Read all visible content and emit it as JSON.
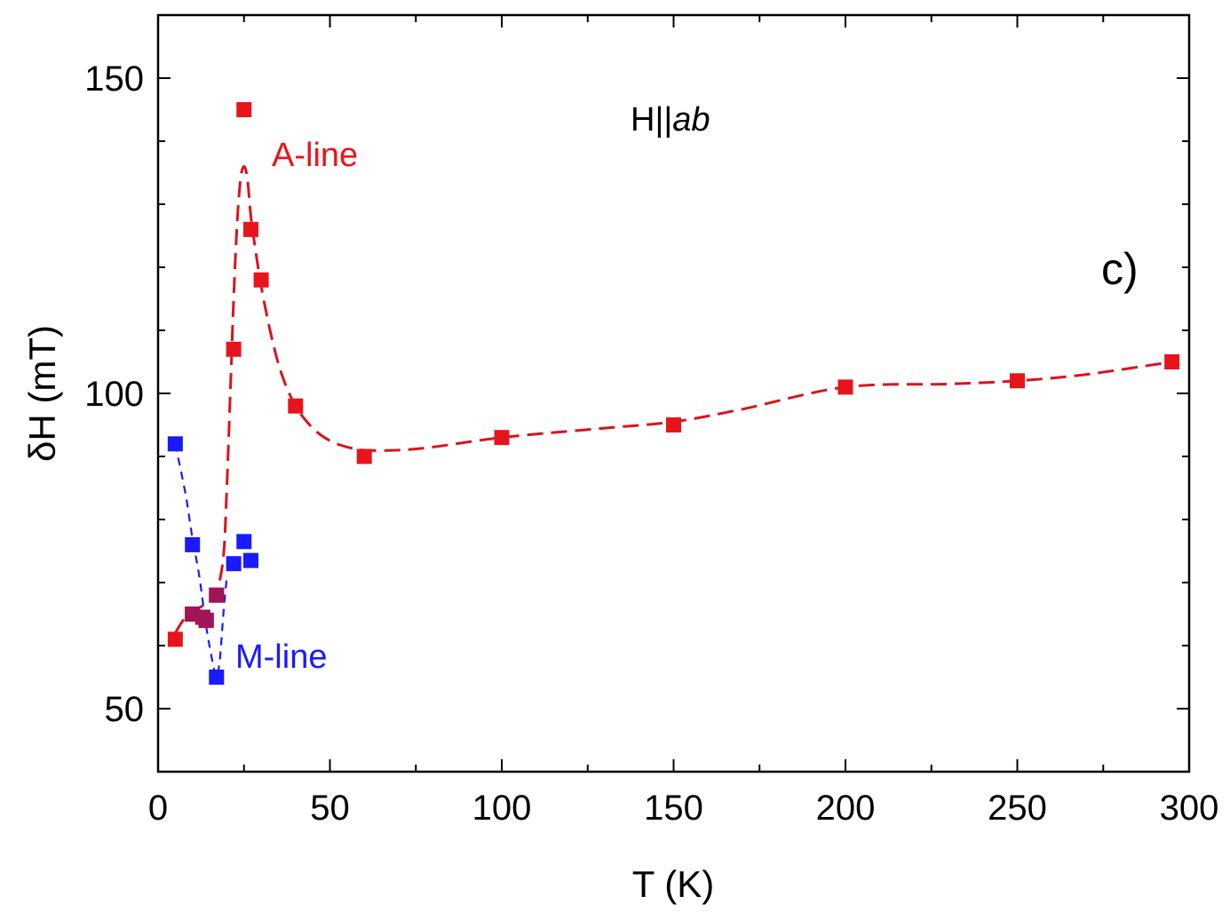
{
  "chart_data": {
    "type": "scatter",
    "title": "",
    "xlabel": "T (K)",
    "ylabel": "δH (mT)",
    "xlim": [
      0,
      300
    ],
    "ylim": [
      40,
      160
    ],
    "x_major_ticks": [
      0,
      50,
      100,
      150,
      200,
      250,
      300
    ],
    "y_major_ticks": [
      50,
      100,
      150
    ],
    "x_tick_labels": [
      "0",
      "50",
      "100",
      "150",
      "200",
      "250",
      "300"
    ],
    "y_tick_labels": [
      "50",
      "100",
      "150"
    ],
    "x_minor_ticks": [
      25,
      75,
      125,
      175,
      225,
      275
    ],
    "y_minor_ticks": [
      60,
      70,
      80,
      90,
      110,
      120,
      130,
      140
    ],
    "series": [
      {
        "name": "A-line",
        "color": "#e8141c",
        "x": [
          5,
          10,
          13,
          14,
          17,
          22,
          25,
          27,
          30,
          40,
          60,
          100,
          150,
          200,
          250,
          295
        ],
        "y": [
          61,
          65,
          64.5,
          64,
          68,
          107,
          145,
          126,
          118,
          98,
          90,
          93,
          95,
          101,
          102,
          105
        ]
      },
      {
        "name": "M-line",
        "color": "#1a1aff",
        "x": [
          5,
          10,
          14,
          17,
          22,
          25,
          27
        ],
        "y": [
          92,
          76,
          64,
          55,
          73,
          76.5,
          73.5
        ]
      }
    ],
    "overlap_points": {
      "color": "#a01458",
      "x": [
        10,
        13,
        14,
        17
      ],
      "y": [
        65,
        64.5,
        64,
        68
      ]
    },
    "fit_curves": [
      {
        "series": "A-line",
        "color": "#d9141c",
        "x": [
          5,
          8,
          12,
          15,
          17,
          19,
          20,
          21,
          22,
          23,
          24,
          25,
          26,
          27,
          28,
          30,
          33,
          36,
          40,
          45,
          50,
          55,
          60,
          70,
          80,
          100,
          130,
          150,
          170,
          200,
          230,
          250,
          270,
          295
        ],
        "y": [
          62,
          64.5,
          66,
          67,
          68.5,
          74,
          85,
          100,
          115,
          127,
          134,
          136,
          134,
          128,
          124,
          117,
          109,
          103,
          98,
          94.5,
          92.5,
          91.5,
          91,
          91,
          91.5,
          93,
          94.5,
          95.5,
          97.5,
          101,
          101.5,
          102,
          103,
          105
        ]
      },
      {
        "series": "M-line",
        "color": "#1a1aff",
        "x": [
          5,
          8,
          10,
          12,
          14,
          16,
          17,
          18,
          19,
          20
        ],
        "y": [
          92,
          84,
          77,
          71,
          63,
          57,
          55,
          58,
          65,
          71
        ]
      }
    ],
    "annotations": [
      {
        "text": "A-line",
        "color": "#e8141c"
      },
      {
        "text": "M-line",
        "color": "#1a1aff"
      },
      {
        "text": "H||",
        "italic_suffix": "ab",
        "color": "#000000"
      },
      {
        "text": "c)",
        "color": "#000000"
      }
    ],
    "grid": false,
    "legend": "none"
  }
}
